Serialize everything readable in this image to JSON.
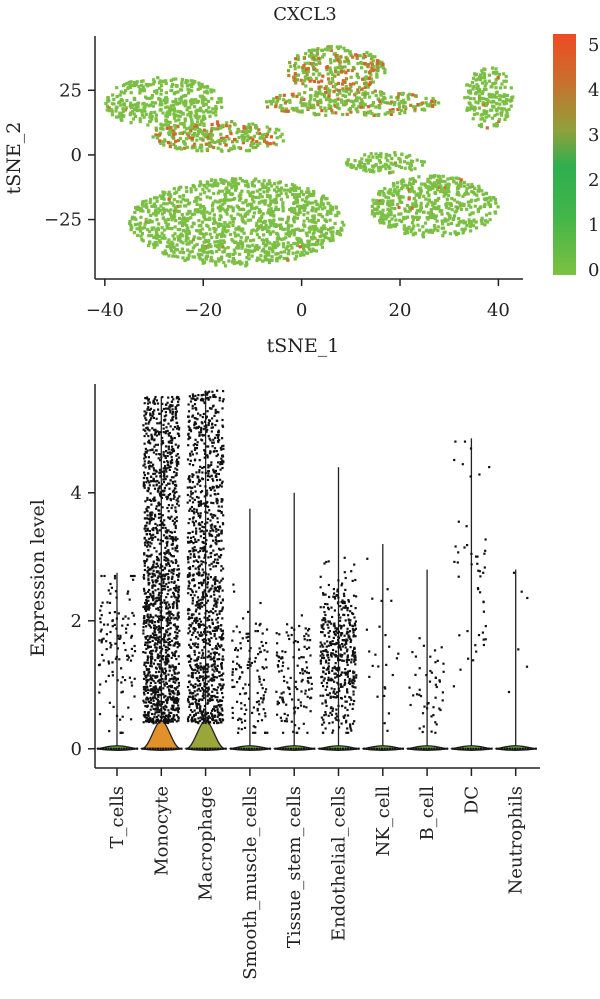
{
  "chart_data": [
    {
      "type": "scatter",
      "title": "CXCL3",
      "xlabel": "tSNE_1",
      "ylabel": "tSNE_2",
      "xlim": [
        -42,
        45
      ],
      "ylim": [
        -48,
        46
      ],
      "xticks": [
        -40,
        -20,
        0,
        20,
        40
      ],
      "yticks": [
        -25,
        0,
        25
      ],
      "grid": false,
      "color_scale": {
        "label_values": [
          0,
          1,
          2,
          3,
          4,
          5
        ],
        "range": [
          0,
          5.3
        ],
        "colors": [
          "#7cc142",
          "#41b549",
          "#2fae50",
          "#8fa13a",
          "#c8702d",
          "#ef4a23"
        ]
      },
      "clusters": [
        {
          "name": "bottom-large",
          "cx": -13,
          "cy": -26,
          "rx": 22,
          "ry": 17,
          "high_fraction": 0.01
        },
        {
          "name": "upper-left",
          "cx": -28,
          "cy": 20,
          "rx": 12,
          "ry": 10,
          "high_fraction": 0.01
        },
        {
          "name": "left-band",
          "cx": -17,
          "cy": 7,
          "rx": 14,
          "ry": 6,
          "high_fraction": 0.35
        },
        {
          "name": "top-center",
          "cx": 7,
          "cy": 33,
          "rx": 10,
          "ry": 9,
          "high_fraction": 0.45
        },
        {
          "name": "center-band",
          "cx": 10,
          "cy": 20,
          "rx": 18,
          "ry": 5,
          "high_fraction": 0.3
        },
        {
          "name": "right-middle",
          "cx": 27,
          "cy": -20,
          "rx": 13,
          "ry": 12,
          "high_fraction": 0.02
        },
        {
          "name": "mid-right-small",
          "cx": 17,
          "cy": -3,
          "rx": 8,
          "ry": 4,
          "high_fraction": 0.02
        },
        {
          "name": "far-right-arc",
          "cx": 38,
          "cy": 22,
          "rx": 5,
          "ry": 12,
          "high_fraction": 0.02
        }
      ]
    },
    {
      "type": "violin",
      "title": "",
      "xlabel": "",
      "ylabel": "Expression level",
      "ylim": [
        -0.3,
        5.7
      ],
      "yticks": [
        0,
        2,
        4
      ],
      "categories": [
        "T_cells",
        "Monocyte",
        "Macrophage",
        "Smooth_muscle_cells",
        "Tissue_stem_cells",
        "Endothelial_cells",
        "NK_cell",
        "B_cell",
        "DC",
        "Neutrophils"
      ],
      "max_values": [
        2.75,
        5.5,
        5.6,
        3.75,
        4.0,
        4.4,
        3.2,
        2.8,
        4.85,
        2.8
      ],
      "point_counts": [
        120,
        1500,
        1200,
        130,
        130,
        450,
        25,
        50,
        50,
        6
      ],
      "point_center": [
        1.6,
        2.3,
        1.9,
        1.2,
        1.1,
        1.5,
        1.6,
        1.0,
        2.9,
        2.0
      ],
      "fill_colors": [
        "#7cc142",
        "#e1912a",
        "#9aa63a",
        "#7cc142",
        "#7cc142",
        "#7cc142",
        "#7cc142",
        "#7cc142",
        "#7cc142",
        "#7cc142"
      ]
    }
  ]
}
